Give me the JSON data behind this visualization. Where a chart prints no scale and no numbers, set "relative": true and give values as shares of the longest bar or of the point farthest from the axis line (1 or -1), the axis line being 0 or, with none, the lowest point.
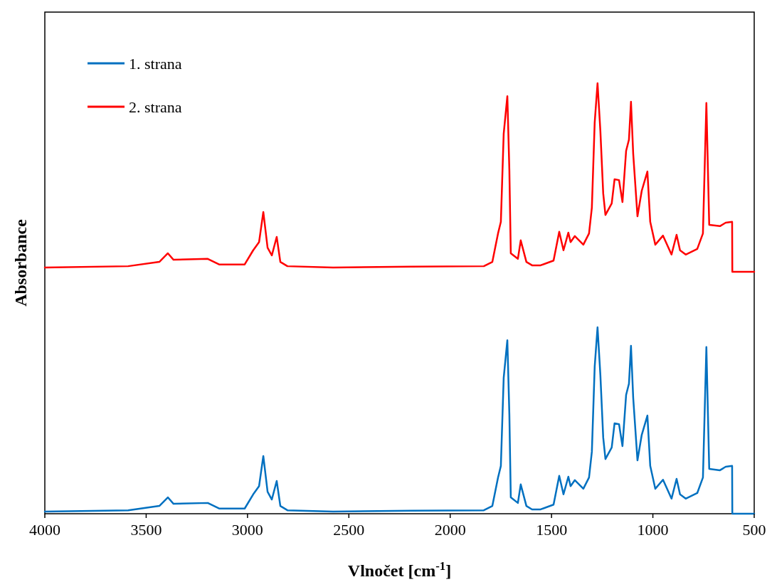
{
  "chart_data": {
    "type": "line",
    "relative": true,
    "xlabel": "Vlnočet [cm$^{-1}$]",
    "ylabel": "Absorbance",
    "xlim": [
      4000,
      500
    ],
    "xticks": [
      4000,
      3500,
      3000,
      2500,
      2000,
      1500,
      1000,
      500
    ],
    "legend": "top left",
    "grid": false,
    "line_style": "solid",
    "marker": "none",
    "series": [
      {
        "name": "1. strana",
        "color": "#0070c0",
        "x": [
          4000,
          3589,
          3435,
          3393,
          3365,
          3196,
          3140,
          3014,
          2972,
          2943,
          2922,
          2901,
          2880,
          2856,
          2838,
          2803,
          2578,
          2192,
          1834,
          1792,
          1764,
          1750,
          1736,
          1718,
          1708,
          1701,
          1666,
          1652,
          1624,
          1596,
          1554,
          1490,
          1462,
          1441,
          1417,
          1406,
          1385,
          1343,
          1315,
          1301,
          1287,
          1273,
          1259,
          1245,
          1234,
          1203,
          1189,
          1167,
          1150,
          1132,
          1118,
          1108,
          1097,
          1076,
          1055,
          1027,
          1013,
          988,
          950,
          908,
          883,
          866,
          838,
          781,
          753,
          736,
          722,
          669,
          641,
          609,
          608,
          500
        ],
        "values": [
          0.005,
          0.008,
          0.018,
          0.038,
          0.023,
          0.025,
          0.012,
          0.012,
          0.045,
          0.064,
          0.134,
          0.051,
          0.033,
          0.076,
          0.018,
          0.008,
          0.005,
          0.007,
          0.008,
          0.018,
          0.084,
          0.111,
          0.316,
          0.403,
          0.23,
          0.038,
          0.025,
          0.068,
          0.018,
          0.01,
          0.01,
          0.021,
          0.088,
          0.045,
          0.086,
          0.064,
          0.078,
          0.058,
          0.084,
          0.144,
          0.342,
          0.433,
          0.322,
          0.177,
          0.127,
          0.154,
          0.21,
          0.208,
          0.157,
          0.276,
          0.302,
          0.39,
          0.269,
          0.124,
          0.183,
          0.228,
          0.111,
          0.058,
          0.079,
          0.035,
          0.081,
          0.045,
          0.035,
          0.048,
          0.084,
          0.387,
          0.104,
          0.101,
          0.109,
          0.111,
          0,
          0
        ]
      },
      {
        "name": "2. strana",
        "color": "#ff0000",
        "x": [
          4000,
          3589,
          3435,
          3393,
          3365,
          3196,
          3140,
          3014,
          2972,
          2943,
          2922,
          2901,
          2880,
          2856,
          2838,
          2803,
          2578,
          2192,
          1834,
          1792,
          1764,
          1750,
          1736,
          1718,
          1708,
          1701,
          1666,
          1652,
          1624,
          1596,
          1554,
          1490,
          1462,
          1441,
          1417,
          1406,
          1385,
          1343,
          1315,
          1301,
          1287,
          1273,
          1259,
          1245,
          1234,
          1203,
          1189,
          1167,
          1150,
          1132,
          1118,
          1108,
          1097,
          1076,
          1055,
          1027,
          1013,
          988,
          950,
          908,
          883,
          866,
          838,
          781,
          753,
          736,
          722,
          669,
          641,
          609,
          608,
          500
        ],
        "values": [
          0.572,
          0.575,
          0.585,
          0.605,
          0.59,
          0.592,
          0.579,
          0.579,
          0.612,
          0.631,
          0.701,
          0.618,
          0.6,
          0.643,
          0.585,
          0.575,
          0.572,
          0.574,
          0.575,
          0.585,
          0.651,
          0.678,
          0.883,
          0.97,
          0.797,
          0.605,
          0.592,
          0.635,
          0.585,
          0.577,
          0.577,
          0.588,
          0.655,
          0.612,
          0.653,
          0.631,
          0.645,
          0.625,
          0.651,
          0.711,
          0.909,
          1,
          0.889,
          0.744,
          0.694,
          0.721,
          0.777,
          0.775,
          0.724,
          0.843,
          0.869,
          0.957,
          0.836,
          0.691,
          0.75,
          0.795,
          0.678,
          0.625,
          0.646,
          0.602,
          0.648,
          0.612,
          0.602,
          0.615,
          0.651,
          0.954,
          0.671,
          0.668,
          0.676,
          0.678,
          0.562,
          0.562
        ]
      }
    ]
  }
}
